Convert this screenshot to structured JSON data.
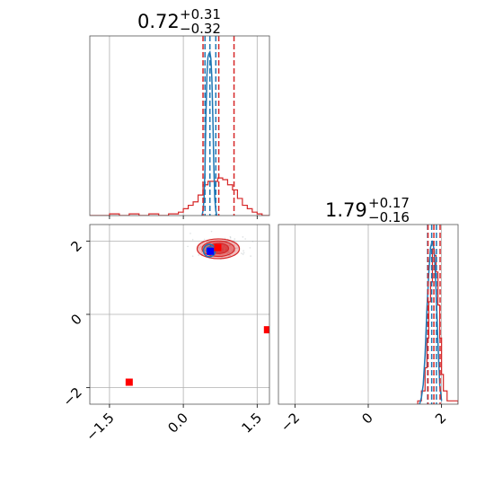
{
  "chart_data": {
    "type": "corner",
    "colors": {
      "series_a": "#1f77b4",
      "series_b": "#d62728",
      "truth_blue": "#0000ff",
      "truth_red": "#ff0000",
      "grid": "#b0b0b0"
    },
    "titles": [
      {
        "base": "0.72",
        "sup": "+0.31",
        "sub": "−0.32"
      },
      {
        "base": "1.79",
        "sup": "+0.17",
        "sub": "−0.16"
      }
    ],
    "param1": {
      "range": [
        -1.9,
        1.75
      ],
      "ticks": [
        -1.5,
        0.0,
        1.5
      ],
      "tick_labels": [
        "−1.5",
        "0.0",
        "1.5"
      ],
      "grid": [
        -1.5,
        0.0,
        1.5
      ]
    },
    "param2": {
      "range": [
        -2.45,
        2.45
      ],
      "ticks": [
        -2,
        0,
        2
      ],
      "tick_labels": [
        "−2",
        "0",
        "2"
      ],
      "grid": [
        -2,
        0,
        2
      ]
    },
    "marginal1": {
      "blue_quantiles": [
        0.44,
        0.54,
        0.66
      ],
      "red_quantiles": [
        0.4,
        0.72,
        1.03
      ],
      "blue_hist_x": [
        0.38,
        0.4,
        0.42,
        0.44,
        0.46,
        0.48,
        0.5,
        0.52,
        0.54,
        0.56,
        0.58,
        0.6,
        0.62,
        0.64,
        0.66,
        0.68
      ],
      "blue_hist_y": [
        0.0,
        0.03,
        0.1,
        0.28,
        0.62,
        0.86,
        0.97,
        0.99,
        1.0,
        0.96,
        0.84,
        0.6,
        0.3,
        0.1,
        0.03,
        0.0
      ],
      "red_hist_edges": [
        -1.9,
        -1.5,
        -1.3,
        -1.1,
        -0.9,
        -0.7,
        -0.5,
        -0.3,
        -0.1,
        0.0,
        0.1,
        0.2,
        0.3,
        0.4,
        0.5,
        0.6,
        0.7,
        0.8,
        0.9,
        1.0,
        1.1,
        1.2,
        1.3,
        1.4,
        1.5,
        1.6,
        1.75
      ],
      "red_hist_counts": [
        0.0,
        0.01,
        0.0,
        0.01,
        0.0,
        0.01,
        0.0,
        0.01,
        0.02,
        0.04,
        0.06,
        0.08,
        0.12,
        0.18,
        0.2,
        0.2,
        0.22,
        0.21,
        0.18,
        0.15,
        0.1,
        0.06,
        0.04,
        0.02,
        0.01,
        0.0
      ]
    },
    "marginal2": {
      "blue_quantiles": [
        1.62,
        1.73,
        1.86
      ],
      "red_quantiles": [
        1.63,
        1.79,
        1.96
      ],
      "blue_hist_x": [
        1.4,
        1.45,
        1.5,
        1.55,
        1.6,
        1.65,
        1.7,
        1.75,
        1.8,
        1.85,
        1.9,
        1.95,
        2.0
      ],
      "blue_hist_y": [
        0.0,
        0.04,
        0.12,
        0.3,
        0.58,
        0.8,
        0.96,
        1.0,
        0.94,
        0.7,
        0.38,
        0.12,
        0.02
      ],
      "red_hist_edges": [
        1.35,
        1.45,
        1.55,
        1.6,
        1.65,
        1.7,
        1.75,
        1.8,
        1.85,
        1.9,
        1.95,
        2.0,
        2.05,
        2.15,
        2.45
      ],
      "red_hist_counts": [
        0.02,
        0.08,
        0.22,
        0.4,
        0.62,
        0.74,
        0.94,
        0.9,
        0.8,
        0.6,
        0.4,
        0.18,
        0.08,
        0.02
      ]
    },
    "joint": {
      "red_contours": [
        {
          "cx": 0.71,
          "cy": 1.79,
          "rx": 0.43,
          "ry": 0.27,
          "alpha": 0.3
        },
        {
          "cx": 0.71,
          "cy": 1.79,
          "rx": 0.33,
          "ry": 0.21,
          "alpha": 0.45
        },
        {
          "cx": 0.72,
          "cy": 1.8,
          "rx": 0.2,
          "ry": 0.14,
          "alpha": 0.6
        }
      ],
      "blue_contours": [
        {
          "cx": 0.53,
          "cy": 1.74,
          "rx": 0.12,
          "ry": 0.17
        },
        {
          "cx": 0.54,
          "cy": 1.74,
          "rx": 0.07,
          "ry": 0.1
        }
      ],
      "truth_points": [
        {
          "x": 0.55,
          "y": 1.72,
          "color": "truth_blue"
        },
        {
          "x": 0.7,
          "y": 1.82,
          "color": "truth_red"
        },
        {
          "x": -1.1,
          "y": -1.85,
          "color": "truth_red"
        },
        {
          "x": 1.71,
          "y": -0.42,
          "color": "truth_red"
        }
      ]
    }
  }
}
